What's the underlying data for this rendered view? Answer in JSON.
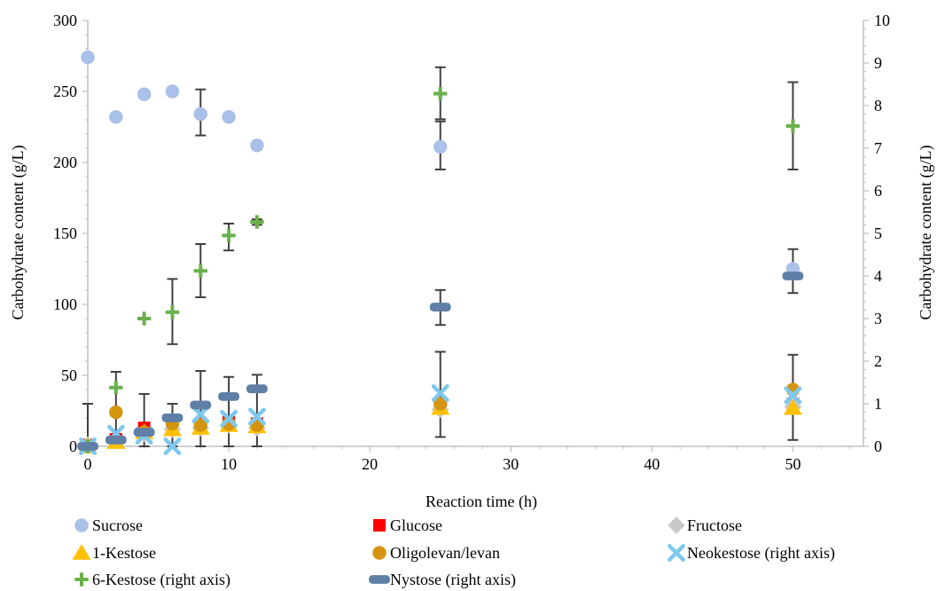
{
  "chart_data": {
    "type": "scatter",
    "xlabel": "Reaction time (h)",
    "ylabel": "Carbohydrate content (g/L)",
    "y2label": "Carbohydrate content (g/L)",
    "xlim": [
      0,
      55
    ],
    "ylim": [
      0,
      300
    ],
    "y2lim": [
      0,
      10
    ],
    "x_ticks": [
      0,
      10,
      20,
      30,
      40,
      50
    ],
    "y_ticks": [
      0,
      50,
      100,
      150,
      200,
      250,
      300
    ],
    "y2_ticks": [
      0,
      1,
      2,
      3,
      4,
      5,
      6,
      7,
      8,
      9,
      10
    ],
    "grid": false,
    "legend_position": "bottom",
    "series": [
      {
        "name": "Sucrose",
        "axis": "left",
        "marker": "circle",
        "color": "#a9c0e8",
        "points": [
          {
            "x": 0,
            "y": 274
          },
          {
            "x": 2,
            "y": 232
          },
          {
            "x": 4,
            "y": 248
          },
          {
            "x": 6,
            "y": 250
          },
          {
            "x": 8,
            "y": 234
          },
          {
            "x": 10,
            "y": 232
          },
          {
            "x": 12,
            "y": 212
          },
          {
            "x": 25,
            "y": 211
          },
          {
            "x": 50,
            "y": 125
          }
        ]
      },
      {
        "name": "Glucose",
        "axis": "left",
        "marker": "square",
        "color": "#ff0000",
        "points": [
          {
            "x": 0,
            "y": 1
          },
          {
            "x": 2,
            "y": 5
          },
          {
            "x": 4,
            "y": 13
          },
          {
            "x": 6,
            "y": 17
          },
          {
            "x": 8,
            "y": 16
          },
          {
            "x": 10,
            "y": 17
          },
          {
            "x": 12,
            "y": 16
          },
          {
            "x": 25,
            "y": 28
          },
          {
            "x": 50,
            "y": 30
          }
        ]
      },
      {
        "name": "Fructose",
        "axis": "left",
        "marker": "diamond",
        "color": "#c8c8c8",
        "points": [
          {
            "x": 0,
            "y": 1
          },
          {
            "x": 2,
            "y": 4
          },
          {
            "x": 4,
            "y": 9
          },
          {
            "x": 6,
            "y": 12
          },
          {
            "x": 8,
            "y": 13
          },
          {
            "x": 10,
            "y": 15
          },
          {
            "x": 12,
            "y": 13
          },
          {
            "x": 25,
            "y": 26
          },
          {
            "x": 50,
            "y": 28
          }
        ]
      },
      {
        "name": "1-Kestose",
        "axis": "left",
        "marker": "triangle",
        "color": "#ffc000",
        "points": [
          {
            "x": 0,
            "y": 0
          },
          {
            "x": 2,
            "y": 3
          },
          {
            "x": 4,
            "y": 10
          },
          {
            "x": 6,
            "y": 12
          },
          {
            "x": 8,
            "y": 13
          },
          {
            "x": 10,
            "y": 15
          },
          {
            "x": 12,
            "y": 14
          },
          {
            "x": 25,
            "y": 27
          },
          {
            "x": 50,
            "y": 27
          }
        ]
      },
      {
        "name": "Oligolevan/levan",
        "axis": "left",
        "marker": "circle",
        "color": "#d4940f",
        "points": [
          {
            "x": 0,
            "y": 0
          },
          {
            "x": 2,
            "y": 24
          },
          {
            "x": 4,
            "y": 10
          },
          {
            "x": 6,
            "y": 16
          },
          {
            "x": 8,
            "y": 15
          },
          {
            "x": 10,
            "y": 16
          },
          {
            "x": 12,
            "y": 15
          },
          {
            "x": 25,
            "y": 30
          },
          {
            "x": 50,
            "y": 40
          }
        ]
      },
      {
        "name": "Neokestose (right axis)",
        "axis": "right",
        "marker": "x",
        "color": "#7ec8ed",
        "points": [
          {
            "x": 0,
            "y": 0
          },
          {
            "x": 2,
            "y": 0.3
          },
          {
            "x": 4,
            "y": 0.25
          },
          {
            "x": 6,
            "y": 0
          },
          {
            "x": 8,
            "y": 0.75
          },
          {
            "x": 10,
            "y": 0.65
          },
          {
            "x": 12,
            "y": 0.7
          },
          {
            "x": 25,
            "y": 1.25
          },
          {
            "x": 50,
            "y": 1.2
          }
        ]
      },
      {
        "name": "6-Kestose (right axis)",
        "axis": "right",
        "marker": "plus",
        "color": "#6ab04c",
        "points": [
          {
            "x": 0,
            "y": 0
          },
          {
            "x": 2,
            "y": 1.38
          },
          {
            "x": 4,
            "y": 3.0
          },
          {
            "x": 6,
            "y": 3.15
          },
          {
            "x": 8,
            "y": 4.12
          },
          {
            "x": 10,
            "y": 4.95
          },
          {
            "x": 12,
            "y": 5.27
          },
          {
            "x": 25,
            "y": 8.28
          },
          {
            "x": 50,
            "y": 7.52
          }
        ]
      },
      {
        "name": "Nystose (right axis)",
        "axis": "right",
        "marker": "dash",
        "color": "#5f7fa6",
        "points": [
          {
            "x": 0,
            "y": 0
          },
          {
            "x": 2,
            "y": 0.15
          },
          {
            "x": 4,
            "y": 0.33
          },
          {
            "x": 6,
            "y": 0.67
          },
          {
            "x": 8,
            "y": 0.97
          },
          {
            "x": 10,
            "y": 1.17
          },
          {
            "x": 12,
            "y": 1.35
          },
          {
            "x": 25,
            "y": 3.27
          },
          {
            "x": 50,
            "y": 4.0
          }
        ]
      }
    ],
    "error_bars": [
      {
        "axis": "right",
        "x": 0,
        "low": -0.05,
        "high": 1.0
      },
      {
        "axis": "right",
        "x": 2,
        "low": 0.02,
        "high": 1.75
      },
      {
        "axis": "right",
        "x": 4,
        "low": 0.0,
        "high": 1.23
      },
      {
        "axis": "right",
        "x": 4,
        "low": 8.23,
        "high": 8.3
      },
      {
        "axis": "right",
        "x": 6,
        "low": 0.0,
        "high": 1.0
      },
      {
        "axis": "right",
        "x": 6,
        "low": 2.4,
        "high": 3.93
      },
      {
        "axis": "right",
        "x": 8,
        "low": 0.0,
        "high": 1.77
      },
      {
        "axis": "right",
        "x": 8,
        "low": 3.5,
        "high": 4.75
      },
      {
        "axis": "right",
        "x": 8,
        "low": 7.3,
        "high": 8.38
      },
      {
        "axis": "right",
        "x": 10,
        "low": 0.0,
        "high": 1.63
      },
      {
        "axis": "right",
        "x": 10,
        "low": 4.6,
        "high": 5.23
      },
      {
        "axis": "right",
        "x": 10,
        "low": 7.7,
        "high": 7.77
      },
      {
        "axis": "right",
        "x": 12,
        "low": 0.0,
        "high": 1.68
      },
      {
        "axis": "right",
        "x": 12,
        "low": 5.2,
        "high": 5.33
      },
      {
        "axis": "right",
        "x": 25,
        "low": 0.22,
        "high": 2.22
      },
      {
        "axis": "right",
        "x": 25,
        "low": 2.85,
        "high": 3.67
      },
      {
        "axis": "right",
        "x": 25,
        "low": 6.5,
        "high": 7.63
      },
      {
        "axis": "right",
        "x": 25,
        "low": 7.68,
        "high": 8.9
      },
      {
        "axis": "right",
        "x": 50,
        "low": 0.15,
        "high": 2.15
      },
      {
        "axis": "right",
        "x": 50,
        "low": 3.6,
        "high": 4.63
      },
      {
        "axis": "right",
        "x": 50,
        "low": 6.5,
        "high": 8.55
      }
    ]
  }
}
